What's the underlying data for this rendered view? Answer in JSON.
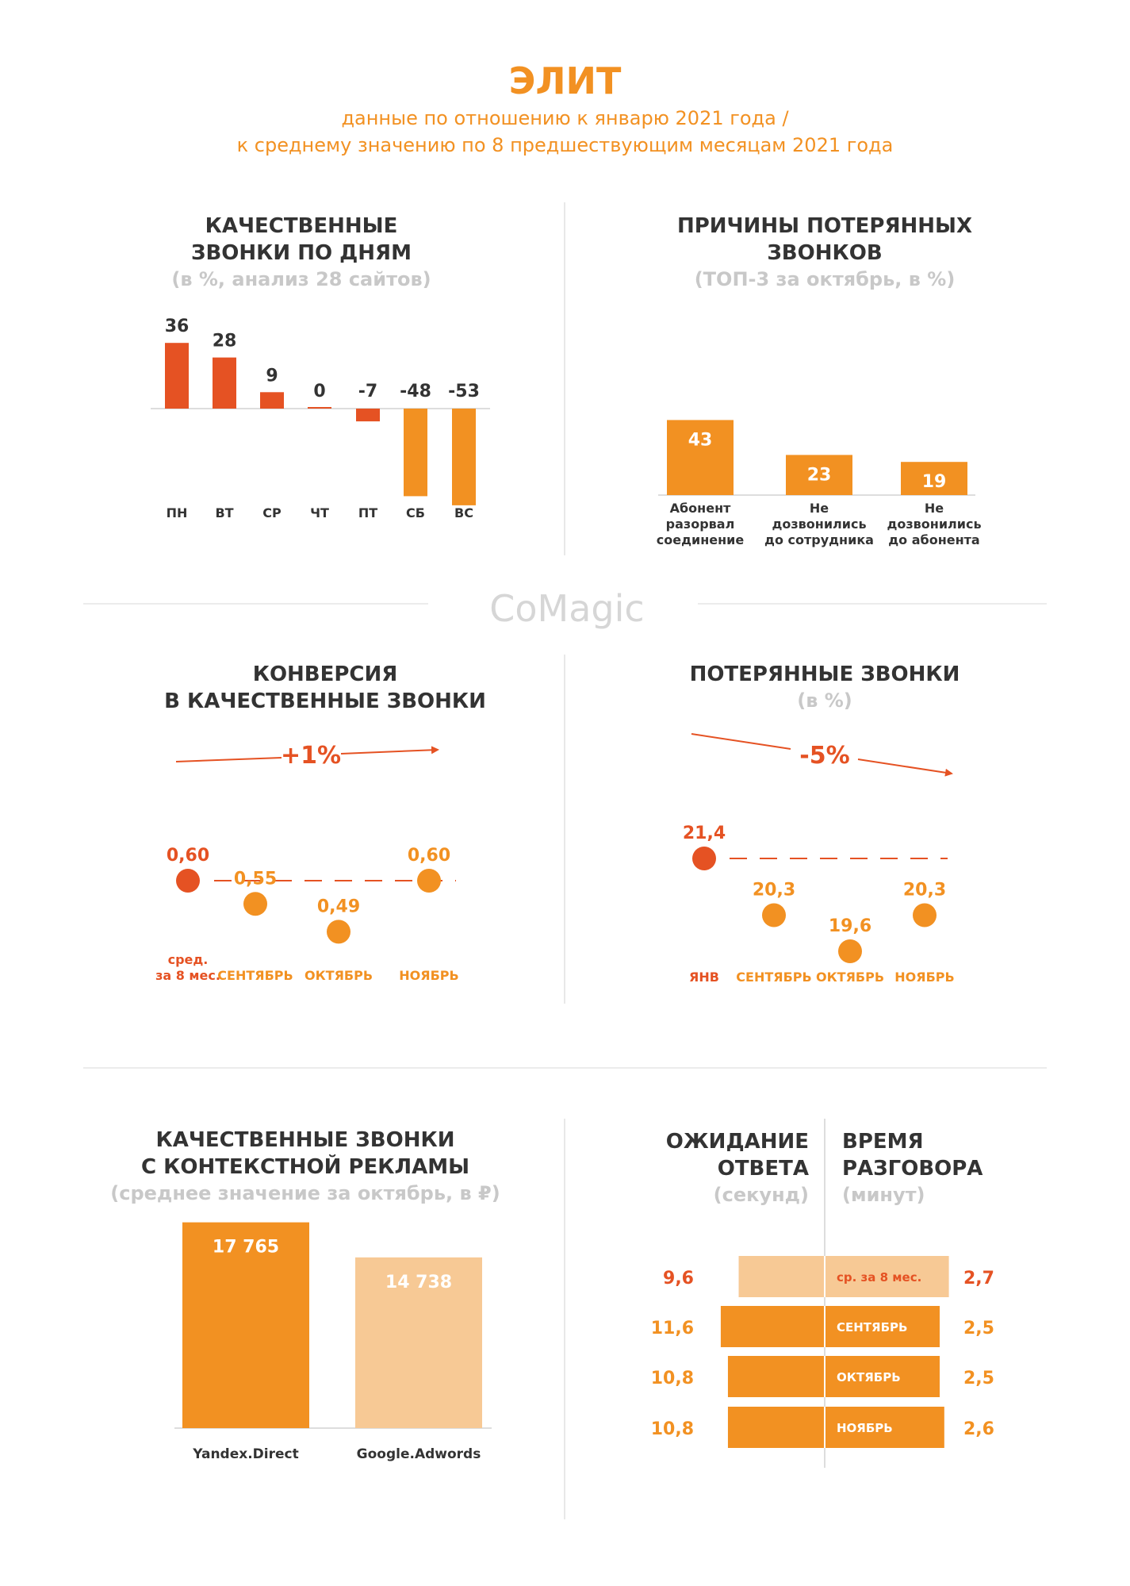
{
  "header": {
    "title": "ЭЛИТ",
    "subtitle_line1": "данные по отношению к январю 2021 года /",
    "subtitle_line2": "к среднему значению по 8 предшествующим месяцам 2021 года"
  },
  "logo": {
    "text": "CoMagic"
  },
  "colors": {
    "red": "#e55223",
    "orange": "#f29122",
    "light": "#f7c995",
    "grey": "#c8c8c8",
    "dark": "#333333"
  },
  "sections": {
    "calls_by_day": {
      "title1": "КАЧЕСТВЕННЫЕ",
      "title2": "ЗВОНКИ ПО ДНЯМ",
      "note": "(в %, анализ 28 сайтов)"
    },
    "lost_reasons": {
      "title1": "ПРИЧИНЫ ПОТЕРЯННЫХ",
      "title2": "ЗВОНКОВ",
      "note": "(ТОП-3 за октябрь, в %)"
    },
    "conversion": {
      "title1": "КОНВЕРСИЯ",
      "title2": "В КАЧЕСТВЕННЫЕ ЗВОНКИ",
      "trend": "+1%"
    },
    "lost_calls": {
      "title1": "ПОТЕРЯННЫЕ ЗВОНКИ",
      "note": "(в %)",
      "trend": "-5%"
    },
    "context_ads": {
      "title1": "КАЧЕСТВЕННЫЕ ЗВОНКИ",
      "title2": "С КОНТЕКСТНОЙ РЕКЛАМЫ",
      "note": "(среднее значение за октябрь, в ₽)"
    },
    "wait_talk": {
      "left_title1": "ОЖИДАНИЕ",
      "left_title2": "ОТВЕТА",
      "left_note": "(секунд)",
      "right_title1": "ВРЕМЯ",
      "right_title2": "РАЗГОВОРА",
      "right_note": "(минут)"
    }
  },
  "chart_data": [
    {
      "type": "bar",
      "categories": [
        "ПН",
        "ВТ",
        "СР",
        "ЧТ",
        "ПТ",
        "СБ",
        "ВС"
      ],
      "values": [
        36,
        28,
        9,
        0,
        -7,
        -48,
        -53
      ],
      "labels": [
        "36",
        "28",
        "9",
        "0",
        "-7",
        "-48",
        "-53"
      ],
      "colors": [
        "#e55223",
        "#e55223",
        "#e55223",
        "#e55223",
        "#e55223",
        "#f29122",
        "#f29122"
      ]
    },
    {
      "type": "bar",
      "categories": [
        [
          "Абонент",
          "разорвал",
          "соединение"
        ],
        [
          "Не",
          "дозвонились",
          "до сотрудника"
        ],
        [
          "Не",
          "дозвонились",
          "до абонента"
        ]
      ],
      "values": [
        43,
        23,
        19
      ],
      "labels": [
        "43",
        "23",
        "19"
      ]
    },
    {
      "type": "scatter",
      "categories": [
        [
          "сред.",
          "за 8 мес."
        ],
        [
          "СЕНТЯБРЬ"
        ],
        [
          "ОКТЯБРЬ"
        ],
        [
          "НОЯБРЬ"
        ]
      ],
      "values": [
        0.6,
        0.55,
        0.49,
        0.6
      ],
      "labels": [
        "0,60",
        "0,55",
        "0,49",
        "0,60"
      ],
      "reference": 0.6,
      "colors": [
        "#e55223",
        "#f29122",
        "#f29122",
        "#f29122"
      ]
    },
    {
      "type": "scatter",
      "categories": [
        [
          "ЯНВ"
        ],
        [
          "СЕНТЯБРЬ"
        ],
        [
          "ОКТЯБРЬ"
        ],
        [
          "НОЯБРЬ"
        ]
      ],
      "values": [
        21.4,
        20.3,
        19.6,
        20.3
      ],
      "labels": [
        "21,4",
        "20,3",
        "19,6",
        "20,3"
      ],
      "reference": 21.4,
      "colors": [
        "#e55223",
        "#f29122",
        "#f29122",
        "#f29122"
      ]
    },
    {
      "type": "bar",
      "categories": [
        "Yandex.Direct",
        "Google.Adwords"
      ],
      "values": [
        17765,
        14738
      ],
      "labels": [
        "17 765",
        "14 738"
      ],
      "colors": [
        "#f29122",
        "#f7c995"
      ]
    },
    {
      "type": "bar",
      "categories": [
        "ср. за 8 мес.",
        "СЕНТЯБРЬ",
        "ОКТЯБРЬ",
        "НОЯБРЬ"
      ],
      "series": [
        {
          "values": [
            9.6,
            11.6,
            10.8,
            10.8
          ],
          "labels": [
            "9,6",
            "11,6",
            "10,8",
            "10,8"
          ]
        },
        {
          "values": [
            2.7,
            2.5,
            2.5,
            2.6
          ],
          "labels": [
            "2,7",
            "2,5",
            "2,5",
            "2,6"
          ]
        }
      ],
      "colors": [
        "#f7c995",
        "#f29122",
        "#f29122",
        "#f29122"
      ]
    }
  ]
}
